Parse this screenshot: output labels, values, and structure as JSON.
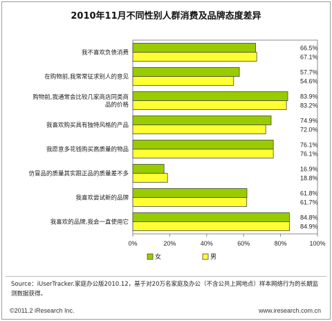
{
  "chart_data": {
    "type": "bar",
    "orientation": "horizontal",
    "title": "2010年11月不同性别人群消费及品牌态度差异",
    "categories": [
      "我不喜欢负债消费",
      "在购物前,我常常征求别人的意见",
      "购物前,我通常会比较几家商店同类商品的价格",
      "我喜欢购买具有独特风格的产品",
      "我愿意多花钱购买高质量的物品",
      "仿冒品的质量其实跟正品的质量差不多",
      "我喜欢尝试新的品牌",
      "我喜欢的品牌,我会一直使用它"
    ],
    "category_lines": [
      [
        "我不喜欢负债消费"
      ],
      [
        "在购物前,我常常征求别人的意见"
      ],
      [
        "购物前,我通常会比较几家商店同类商",
        "品的价格"
      ],
      [
        "我喜欢购买具有独特风格的产品"
      ],
      [
        "我愿意多花钱购买高质量的物品"
      ],
      [
        "仿冒品的质量其实跟正品的质量差不多"
      ],
      [
        "我喜欢尝试新的品牌"
      ],
      [
        "我喜欢的品牌,我会一直使用它"
      ]
    ],
    "series": [
      {
        "name": "女",
        "color": "#99cc00",
        "values": [
          66.5,
          57.7,
          83.9,
          74.9,
          76.1,
          16.9,
          61.8,
          84.8
        ]
      },
      {
        "name": "男",
        "color": "#ffff33",
        "values": [
          67.1,
          54.6,
          83.2,
          72.0,
          76.1,
          18.8,
          61.7,
          84.9
        ]
      }
    ],
    "xlim": [
      0,
      100
    ],
    "x_ticks": [
      "0%",
      "20%",
      "40%",
      "60%",
      "80%",
      "100%"
    ],
    "legend_position": "bottom-left",
    "grid": false
  },
  "footer": {
    "source": "Source：iUserTracker.家庭办公版2010.12，基于对20万名家庭及办公（不含公共上网地点）样本网络行为的长期监测数据获得。",
    "copyright": "©2011.2 iResearch Inc.",
    "website": "www.iresearch.com.cn"
  }
}
